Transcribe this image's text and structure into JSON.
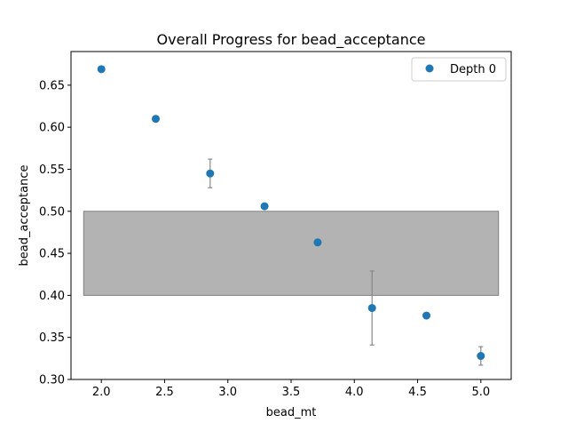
{
  "chart_data": {
    "type": "scatter",
    "title": "Overall Progress for bead_acceptance",
    "xlabel": "bead_mt",
    "ylabel": "bead_acceptance",
    "xlim": [
      1.76,
      5.24
    ],
    "ylim": [
      0.3,
      0.69
    ],
    "xticks": [
      2.0,
      2.5,
      3.0,
      3.5,
      4.0,
      4.5,
      5.0
    ],
    "xtick_labels": [
      "2.0",
      "2.5",
      "3.0",
      "3.5",
      "4.0",
      "4.5",
      "5.0"
    ],
    "yticks": [
      0.3,
      0.35,
      0.4,
      0.45,
      0.5,
      0.55,
      0.6,
      0.65
    ],
    "ytick_labels": [
      "0.30",
      "0.35",
      "0.40",
      "0.45",
      "0.50",
      "0.55",
      "0.60",
      "0.65"
    ],
    "grid": false,
    "legend_position": "top-right",
    "target_band": {
      "x_range": [
        1.86,
        5.14
      ],
      "y_range": [
        0.4,
        0.5
      ],
      "color": "#808080"
    },
    "series": [
      {
        "name": "Depth 0",
        "color": "#1f77b4",
        "x": [
          2.0,
          2.43,
          2.86,
          3.29,
          3.71,
          4.14,
          4.57,
          5.0
        ],
        "y": [
          0.669,
          0.61,
          0.545,
          0.506,
          0.463,
          0.385,
          0.376,
          0.328
        ],
        "yerr": [
          0.0,
          0.0,
          0.017,
          0.0,
          0.0,
          0.044,
          0.0,
          0.011
        ]
      }
    ]
  }
}
